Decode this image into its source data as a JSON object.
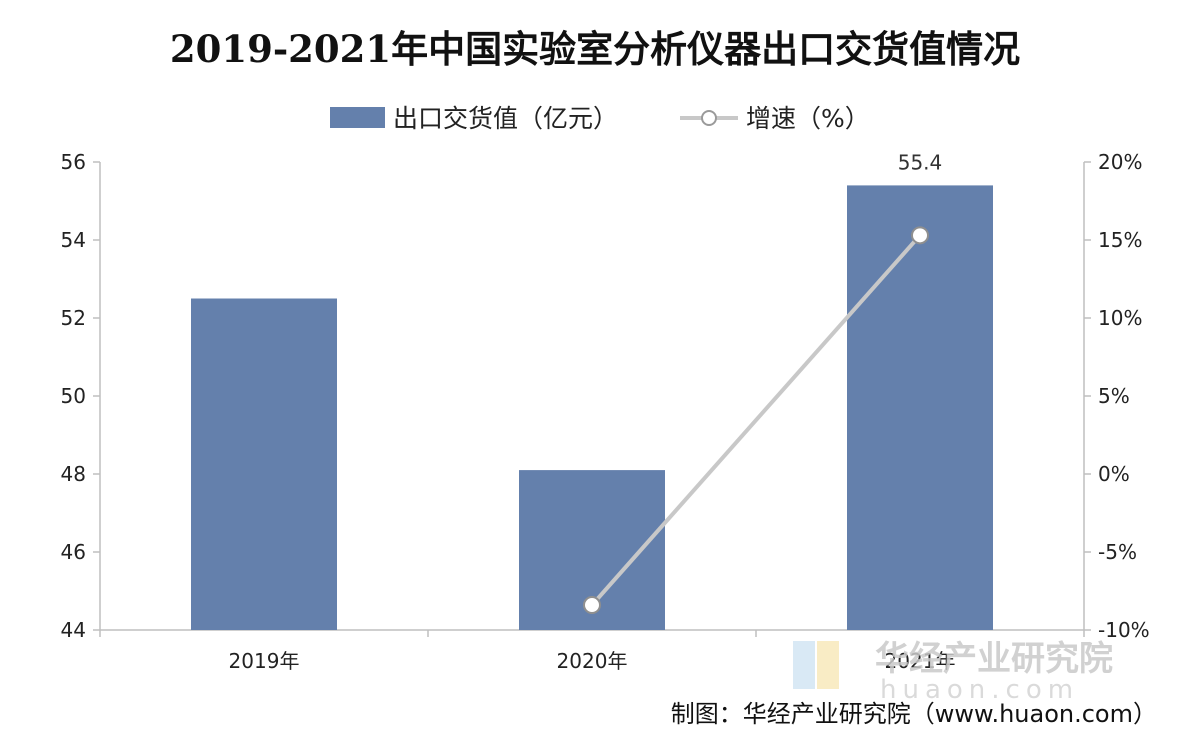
{
  "chart_data": {
    "type": "bar+line",
    "title": "2019-2021年中国实验室分析仪器出口交货值情况",
    "categories": [
      "2019年",
      "2020年",
      "2021年"
    ],
    "series": [
      {
        "name": "出口交货值（亿元）",
        "type": "bar",
        "axis": "left",
        "values": [
          52.5,
          48.1,
          55.4
        ],
        "color": "#6480ac"
      },
      {
        "name": "增速（%）",
        "type": "line",
        "axis": "right",
        "values": [
          null,
          -8.4,
          15.3
        ],
        "color": "#c8c8c8"
      }
    ],
    "data_labels": [
      "",
      "",
      "55.4"
    ],
    "y_left": {
      "min": 44,
      "max": 56,
      "step": 2,
      "ticks": [
        "44",
        "46",
        "48",
        "50",
        "52",
        "54",
        "56"
      ]
    },
    "y_right": {
      "min": -10,
      "max": 20,
      "step": 5,
      "ticks": [
        "-10%",
        "-5%",
        "0%",
        "5%",
        "10%",
        "15%",
        "20%"
      ]
    },
    "legend_position": "top-center",
    "grid": false
  },
  "credit": "制图：华经产业研究院（www.huaon.com）",
  "watermark": {
    "text": "华经产业研究院",
    "url": "huaon.com"
  }
}
